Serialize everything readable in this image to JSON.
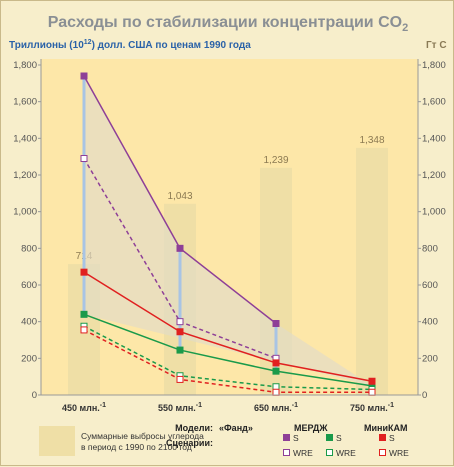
{
  "chart_data": {
    "type": "line",
    "title": "Расходы по стабилизации концентрации CO",
    "title_sub": "2",
    "ylabel_left_pre": "Триллионы (10",
    "ylabel_left_sup": "12",
    "ylabel_left_post": ") долл. США по ценам 1990 года",
    "ylabel_right": "Гт С",
    "ylim": [
      0,
      1800
    ],
    "yticks_left": [
      "0",
      "200",
      "400",
      "600",
      "800",
      "1,000",
      "1,200",
      "1,400",
      "1,600",
      "1,800"
    ],
    "yticks_right": [
      "0",
      "200",
      "400",
      "600",
      "800",
      "1,000",
      "1,200",
      "1,400",
      "1,600",
      "1,800"
    ],
    "categories": [
      "450 млн.-1",
      "550 млн.-1",
      "650 млн.-1",
      "750 млн.-1"
    ],
    "category_labels": [
      {
        "main": "450 млн.",
        "sup": "-1"
      },
      {
        "main": "550 млн.",
        "sup": "-1"
      },
      {
        "main": "650 млн.",
        "sup": "-1"
      },
      {
        "main": "750 млн.",
        "sup": "-1"
      }
    ],
    "emissions_bars": {
      "values": [
        714,
        1043,
        1239,
        1348
      ],
      "labels": [
        "714",
        "1,043",
        "1,239",
        "1,348"
      ],
      "color": "#efdfa6"
    },
    "series": [
      {
        "model": "Fund",
        "scenario": "S",
        "values": [
          1740,
          800,
          390,
          null
        ],
        "color": "#8e3f97",
        "dashed": false,
        "filled": true
      },
      {
        "model": "Fund",
        "scenario": "WRE",
        "values": [
          1290,
          400,
          200,
          null
        ],
        "color": "#8e3f97",
        "dashed": true,
        "filled": false
      },
      {
        "model": "MERGE",
        "scenario": "S",
        "values": [
          440,
          245,
          130,
          50
        ],
        "color": "#1a9a4a",
        "dashed": false,
        "filled": true
      },
      {
        "model": "MERGE",
        "scenario": "WRE",
        "values": [
          375,
          105,
          45,
          30
        ],
        "color": "#1a9a4a",
        "dashed": true,
        "filled": false
      },
      {
        "model": "MiniCAM",
        "scenario": "S",
        "values": [
          670,
          345,
          175,
          75
        ],
        "color": "#e02020",
        "dashed": false,
        "filled": true
      },
      {
        "model": "MiniCAM",
        "scenario": "WRE",
        "values": [
          355,
          85,
          15,
          15
        ],
        "color": "#e02020",
        "dashed": true,
        "filled": false
      }
    ],
    "fund_range_bars": {
      "color": "#a8c4e4"
    },
    "grid": false,
    "legend": {
      "bar_text_line1": "Суммарные выбросы углерода",
      "bar_text_line2": "в период с 1990 по 2100 год",
      "models_label": "Модели:",
      "scenarios_label": "Сценарии:",
      "models": [
        "«Фанд»",
        "МЕРДЖ",
        "МиниКАМ"
      ],
      "scenario_s": "S",
      "scenario_wre": "WRE"
    }
  }
}
